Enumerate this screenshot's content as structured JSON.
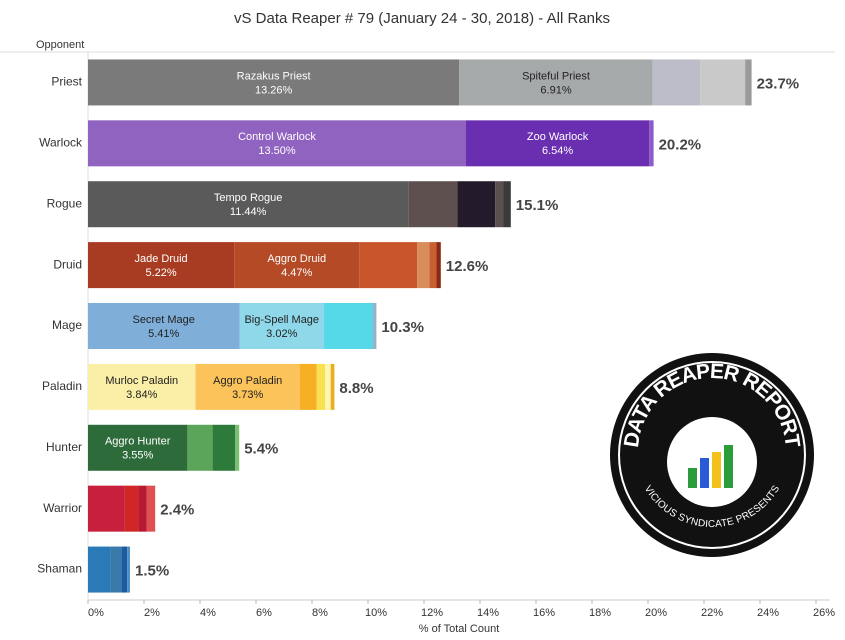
{
  "chart_data": {
    "type": "stacked_hbar",
    "title": "vS Data Reaper # 79 (January 24 - 30, 2018) - All Ranks",
    "y_label": "Opponent",
    "x_label": "% of Total Count",
    "xlim": [
      0,
      26.5
    ],
    "xticks": [
      {
        "value": 0,
        "label": "0%"
      },
      {
        "value": 2,
        "label": "2%"
      },
      {
        "value": 4,
        "label": "4%"
      },
      {
        "value": 6,
        "label": "6%"
      },
      {
        "value": 8,
        "label": "8%"
      },
      {
        "value": 10,
        "label": "10%"
      },
      {
        "value": 12,
        "label": "12%"
      },
      {
        "value": 14,
        "label": "14%"
      },
      {
        "value": 16,
        "label": "16%"
      },
      {
        "value": 18,
        "label": "18%"
      },
      {
        "value": 20,
        "label": "20%"
      },
      {
        "value": 22,
        "label": "22%"
      },
      {
        "value": 24,
        "label": "24%"
      },
      {
        "value": 26,
        "label": "26%"
      }
    ],
    "categories": [
      "Priest",
      "Warlock",
      "Rogue",
      "Druid",
      "Mage",
      "Paladin",
      "Hunter",
      "Warrior",
      "Shaman"
    ],
    "totals": [
      23.7,
      20.2,
      15.1,
      12.6,
      10.3,
      8.8,
      5.4,
      2.4,
      1.5
    ],
    "total_labels": [
      "23.7%",
      "20.2%",
      "15.1%",
      "12.6%",
      "10.3%",
      "8.8%",
      "5.4%",
      "2.4%",
      "1.5%"
    ],
    "segments": [
      [
        {
          "name": "Razakus Priest",
          "value": 13.26,
          "value_label": "13.26%",
          "color": "#7a7a7a"
        },
        {
          "name": "Spiteful Priest",
          "value": 6.91,
          "value_label": "6.91%",
          "color": "#a6a9aa"
        },
        {
          "value": 1.7,
          "color": "#bdbdc9"
        },
        {
          "value": 1.6,
          "color": "#c9c9c9"
        },
        {
          "value": 0.23,
          "color": "#9a9a9a"
        }
      ],
      [
        {
          "name": "Control Warlock",
          "value": 13.5,
          "value_label": "13.50%",
          "color": "#9063c0"
        },
        {
          "name": "Zoo Warlock",
          "value": 6.54,
          "value_label": "6.54%",
          "color": "#6a2fb0"
        },
        {
          "value": 0.16,
          "color": "#8b5cc8"
        }
      ],
      [
        {
          "name": "Tempo Rogue",
          "value": 11.44,
          "value_label": "11.44%",
          "color": "#5a5a5a"
        },
        {
          "value": 1.75,
          "color": "#5f5050"
        },
        {
          "value": 1.35,
          "color": "#231b2b"
        },
        {
          "value": 0.3,
          "color": "#5a5050"
        },
        {
          "value": 0.26,
          "color": "#3a3a3a"
        }
      ],
      [
        {
          "name": "Jade Druid",
          "value": 5.22,
          "value_label": "5.22%",
          "color": "#a83c22"
        },
        {
          "name": "Aggro Druid",
          "value": 4.47,
          "value_label": "4.47%",
          "color": "#b44a26"
        },
        {
          "value": 2.07,
          "color": "#c8542a"
        },
        {
          "value": 0.43,
          "color": "#d88c5a"
        },
        {
          "value": 0.25,
          "color": "#c86030"
        },
        {
          "value": 0.16,
          "color": "#8a2a14"
        }
      ],
      [
        {
          "name": "Secret Mage",
          "value": 5.41,
          "value_label": "5.41%",
          "color": "#7fafd8"
        },
        {
          "name": "Big-Spell Mage",
          "value": 3.02,
          "value_label": "3.02%",
          "color": "#8fd8ea"
        },
        {
          "value": 1.75,
          "color": "#55d8e8"
        },
        {
          "value": 0.12,
          "color": "#9ab0c8"
        }
      ],
      [
        {
          "name": "Murloc Paladin",
          "value": 3.84,
          "value_label": "3.84%",
          "color": "#fbefa8"
        },
        {
          "name": "Aggro Paladin",
          "value": 3.73,
          "value_label": "3.73%",
          "color": "#fcc35a"
        },
        {
          "value": 0.6,
          "color": "#f7b023"
        },
        {
          "value": 0.3,
          "color": "#f8e050"
        },
        {
          "value": 0.2,
          "color": "#fff4b0"
        },
        {
          "value": 0.13,
          "color": "#e8b020"
        }
      ],
      [
        {
          "name": "Aggro Hunter",
          "value": 3.55,
          "value_label": "3.55%",
          "color": "#2e6b3a"
        },
        {
          "value": 0.9,
          "color": "#5ba55b"
        },
        {
          "value": 0.8,
          "color": "#2d7a3a"
        },
        {
          "value": 0.15,
          "color": "#7ac070"
        }
      ],
      [
        {
          "value": 1.3,
          "color": "#c8203c"
        },
        {
          "value": 0.5,
          "color": "#d02626"
        },
        {
          "value": 0.3,
          "color": "#b81830"
        },
        {
          "value": 0.3,
          "color": "#e05050"
        }
      ],
      [
        {
          "value": 0.8,
          "color": "#2a7ab8"
        },
        {
          "value": 0.4,
          "color": "#3a7aaa"
        },
        {
          "value": 0.2,
          "color": "#1e5aa0"
        },
        {
          "value": 0.1,
          "color": "#5090c0"
        }
      ]
    ]
  },
  "logo": {
    "title": "DATA REAPER REPORT",
    "subtitle": "VICIOUS SYNDICATE PRESENTS"
  }
}
